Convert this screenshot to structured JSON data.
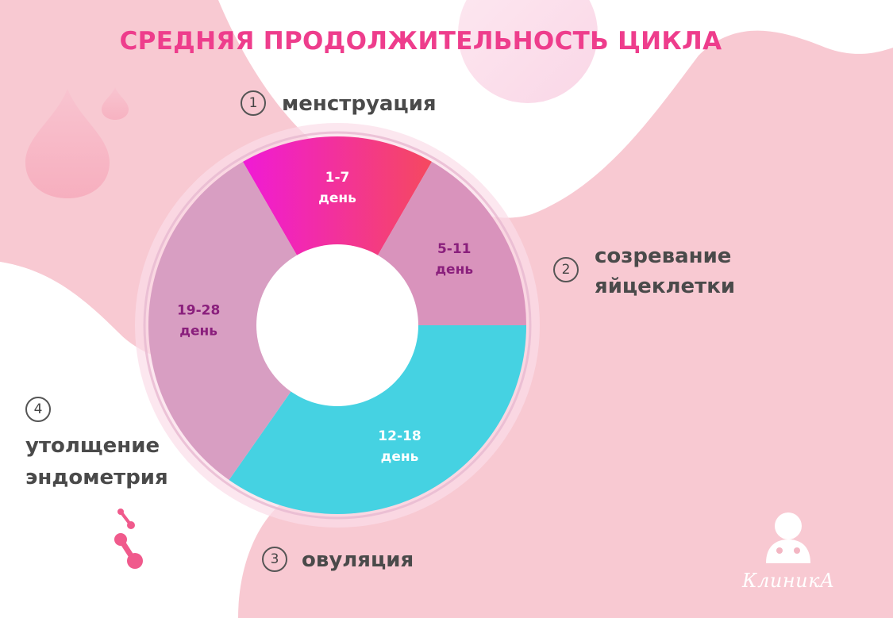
{
  "title": "СРЕДНЯЯ ПРОДОЛЖИТЕЛЬНОСТЬ ЦИКЛА",
  "steps": [
    {
      "num": "1",
      "label": "менструация"
    },
    {
      "num": "2",
      "label": "созревание\nяйцеклетки"
    },
    {
      "num": "3",
      "label": "овуляция"
    },
    {
      "num": "4",
      "label": "утолщение\nэндометрия"
    }
  ],
  "logo": {
    "text": "КлиникА",
    "icon": "doctor-icon"
  },
  "colors": {
    "title": "#ee3d8c",
    "menstruation_start": "#f01ad6",
    "menstruation_end": "#f5495f",
    "maturation": "#d993bc",
    "ovulation": "#45d2e2",
    "endometrium": "#d89ec2",
    "background_pink": "#f8c9d2"
  },
  "chart_data": {
    "type": "pie",
    "categories": [
      "1-7 день",
      "5-11 день",
      "12-18 день",
      "19-28 день"
    ],
    "values": [
      7,
      7,
      7,
      10
    ],
    "segments": [
      {
        "label": "1-7",
        "unit": "день",
        "value": 7,
        "color": "#f32db8",
        "text_color": "#ffffff"
      },
      {
        "label": "5-11",
        "unit": "день",
        "value": 7,
        "color": "#d993bc",
        "text_color": "#8a1f7c"
      },
      {
        "label": "12-18",
        "unit": "день",
        "value": 7,
        "color": "#45d2e2",
        "text_color": "#ffffff"
      },
      {
        "label": "19-28",
        "unit": "день",
        "value": 10,
        "color": "#d89ec2",
        "text_color": "#8a1f7c"
      }
    ],
    "title": "СРЕДНЯЯ ПРОДОЛЖИТЕЛЬНОСТЬ ЦИКЛА"
  }
}
